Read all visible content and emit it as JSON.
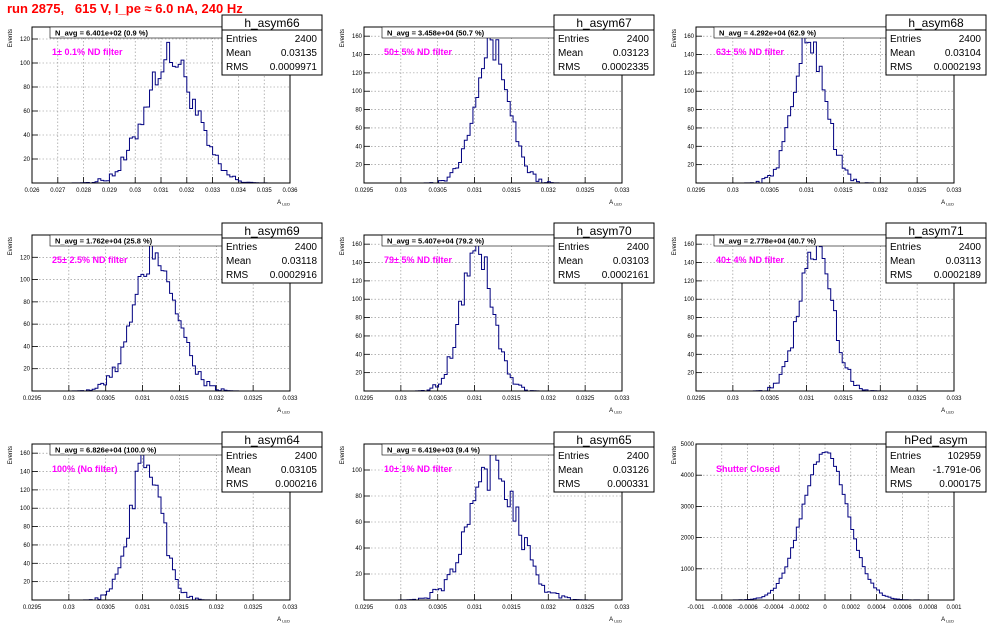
{
  "page": {
    "title": "run 2875,   615 V, I_pe ≈ 6.0 nA, 240 Hz",
    "ylabel": "Events",
    "xlabel": "A_{LED}"
  },
  "chart_data": [
    {
      "type": "histogram",
      "name": "h_asym66",
      "navg": "N_avg = 6.401e+02 (0.9 %)",
      "filter": "1± 0.1% ND filter",
      "stats": {
        "entries": "2400",
        "mean": "0.03135",
        "rms": "0.0009971"
      },
      "xlim": [
        0.026,
        0.036
      ],
      "ylim": [
        0,
        130
      ],
      "xticks": [
        "0.026",
        "0.027",
        "0.028",
        "0.029",
        "0.03",
        "0.031",
        "0.032",
        "0.033",
        "0.034",
        "0.035",
        "0.036"
      ],
      "yticks": [
        "20",
        "40",
        "60",
        "80",
        "100",
        "120"
      ],
      "curve": {
        "mean": 0.03135,
        "sigma": 0.00096,
        "peak": 105
      }
    },
    {
      "type": "histogram",
      "name": "h_asym67",
      "navg": "N_avg = 3.458e+04 (50.7 %)",
      "filter": "50± 5% ND filter",
      "stats": {
        "entries": "2400",
        "mean": "0.03123",
        "rms": "0.0002335"
      },
      "xlim": [
        0.0295,
        0.033
      ],
      "ylim": [
        0,
        170
      ],
      "xticks": [
        "0.0295",
        "0.03",
        "0.0305",
        "0.031",
        "0.0315",
        "0.032",
        "0.0325",
        "0.033"
      ],
      "yticks": [
        "20",
        "40",
        "60",
        "80",
        "100",
        "120",
        "140",
        "160"
      ],
      "curve": {
        "mean": 0.03123,
        "sigma": 0.000235,
        "peak": 150
      }
    },
    {
      "type": "histogram",
      "name": "h_asym68",
      "navg": "N_avg = 4.292e+04 (62.9 %)",
      "filter": "63± 5% ND filter",
      "stats": {
        "entries": "2400",
        "mean": "0.03104",
        "rms": "0.0002193"
      },
      "xlim": [
        0.0295,
        0.033
      ],
      "ylim": [
        0,
        170
      ],
      "xticks": [
        "0.0295",
        "0.03",
        "0.0305",
        "0.031",
        "0.0315",
        "0.032",
        "0.0325",
        "0.033"
      ],
      "yticks": [
        "20",
        "40",
        "60",
        "80",
        "100",
        "120",
        "140",
        "160"
      ],
      "curve": {
        "mean": 0.03104,
        "sigma": 0.00022,
        "peak": 155
      }
    },
    {
      "type": "histogram",
      "name": "h_asym69",
      "navg": "N_avg = 1.762e+04 (25.8 %)",
      "filter": "25± 2.5% ND filter",
      "stats": {
        "entries": "2400",
        "mean": "0.03118",
        "rms": "0.0002916"
      },
      "xlim": [
        0.0295,
        0.033
      ],
      "ylim": [
        0,
        140
      ],
      "xticks": [
        "0.0295",
        "0.03",
        "0.0305",
        "0.031",
        "0.0315",
        "0.032",
        "0.0325",
        "0.033"
      ],
      "yticks": [
        "20",
        "40",
        "60",
        "80",
        "100",
        "120"
      ],
      "curve": {
        "mean": 0.03118,
        "sigma": 0.00029,
        "peak": 122
      }
    },
    {
      "type": "histogram",
      "name": "h_asym70",
      "navg": "N_avg = 5.407e+04 (79.2 %)",
      "filter": "79± 5% ND filter",
      "stats": {
        "entries": "2400",
        "mean": "0.03103",
        "rms": "0.0002161"
      },
      "xlim": [
        0.0295,
        0.033
      ],
      "ylim": [
        0,
        170
      ],
      "xticks": [
        "0.0295",
        "0.03",
        "0.0305",
        "0.031",
        "0.0315",
        "0.032",
        "0.0325",
        "0.033"
      ],
      "yticks": [
        "20",
        "40",
        "60",
        "80",
        "100",
        "120",
        "140",
        "160"
      ],
      "curve": {
        "mean": 0.03103,
        "sigma": 0.000216,
        "peak": 155
      }
    },
    {
      "type": "histogram",
      "name": "h_asym71",
      "navg": "N_avg = 2.778e+04 (40.7 %)",
      "filter": "40± 4% ND filter",
      "stats": {
        "entries": "2400",
        "mean": "0.03113",
        "rms": "0.0002189"
      },
      "xlim": [
        0.0295,
        0.033
      ],
      "ylim": [
        0,
        170
      ],
      "xticks": [
        "0.0295",
        "0.03",
        "0.0305",
        "0.031",
        "0.0315",
        "0.032",
        "0.0325",
        "0.033"
      ],
      "yticks": [
        "20",
        "40",
        "60",
        "80",
        "100",
        "120",
        "140",
        "160"
      ],
      "curve": {
        "mean": 0.03113,
        "sigma": 0.00022,
        "peak": 158
      }
    },
    {
      "type": "histogram",
      "name": "h_asym64",
      "navg": "N_avg = 6.826e+04 (100.0 %)",
      "filter": "100% (No filter)",
      "stats": {
        "entries": "2400",
        "mean": "0.03105",
        "rms": "0.000216"
      },
      "xlim": [
        0.0295,
        0.033
      ],
      "ylim": [
        0,
        170
      ],
      "xticks": [
        "0.0295",
        "0.03",
        "0.0305",
        "0.031",
        "0.0315",
        "0.032",
        "0.0325",
        "0.033"
      ],
      "yticks": [
        "20",
        "40",
        "60",
        "80",
        "100",
        "120",
        "140",
        "160"
      ],
      "curve": {
        "mean": 0.03105,
        "sigma": 0.000216,
        "peak": 152
      }
    },
    {
      "type": "histogram",
      "name": "h_asym65",
      "navg": "N_avg = 6.419e+03 (9.4 %)",
      "filter": "10± 1% ND filter",
      "stats": {
        "entries": "2400",
        "mean": "0.03126",
        "rms": "0.000331"
      },
      "xlim": [
        0.0295,
        0.033
      ],
      "ylim": [
        0,
        120
      ],
      "xticks": [
        "0.0295",
        "0.03",
        "0.0305",
        "0.031",
        "0.0315",
        "0.032",
        "0.0325",
        "0.033"
      ],
      "yticks": [
        "20",
        "40",
        "60",
        "80",
        "100"
      ],
      "curve": {
        "mean": 0.03126,
        "sigma": 0.00033,
        "peak": 100
      }
    },
    {
      "type": "histogram",
      "name": "hPed_asym",
      "navg": "",
      "filter": "Shutter Closed",
      "stats": {
        "entries": "102959",
        "mean": "-1.791e-06",
        "rms": "0.000175"
      },
      "xlim": [
        -0.001,
        0.001
      ],
      "ylim": [
        0,
        5000
      ],
      "xticks": [
        "-0.001",
        "-0.0008",
        "-0.0006",
        "-0.0004",
        "-0.0002",
        "0",
        "0.0002",
        "0.0004",
        "0.0006",
        "0.0008",
        "0.001"
      ],
      "yticks": [
        "1000",
        "2000",
        "3000",
        "4000",
        "5000"
      ],
      "curve": {
        "mean": 0.0,
        "sigma": 0.000175,
        "peak": 4750
      }
    }
  ],
  "colors": {
    "title": "#ff0000",
    "filter_label": "#ff00ff",
    "histogram": "#000080"
  }
}
